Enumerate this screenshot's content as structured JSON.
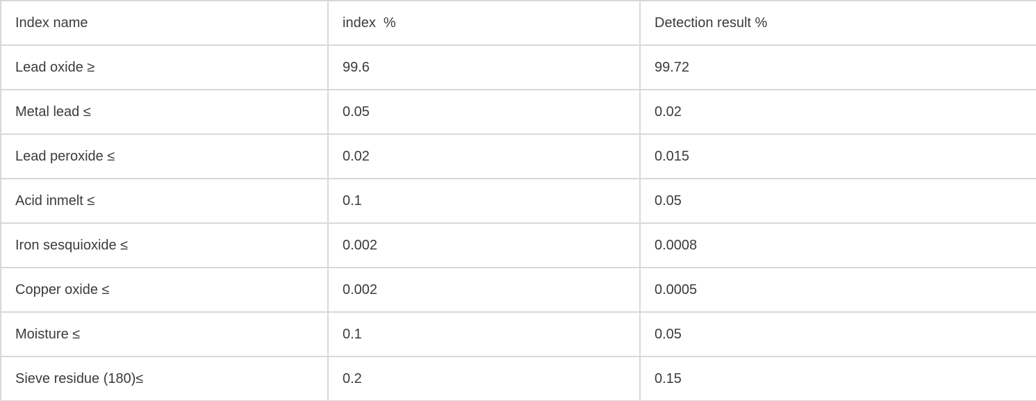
{
  "colors": {
    "border": "#d8d8d8",
    "text": "#3b3b3b",
    "background": "#ffffff"
  },
  "table": {
    "header": {
      "index_name": "Index name",
      "index_pct": "index  %",
      "detection_result_pct": "Detection result %"
    },
    "rows": [
      {
        "index_name": "Lead oxide ≥",
        "index_pct": "99.6",
        "detection_result_pct": "99.72"
      },
      {
        "index_name": "Metal lead ≤",
        "index_pct": "0.05",
        "detection_result_pct": "0.02"
      },
      {
        "index_name": "Lead peroxide ≤",
        "index_pct": "0.02",
        "detection_result_pct": "0.015"
      },
      {
        "index_name": "Acid inmelt ≤",
        "index_pct": "0.1",
        "detection_result_pct": "0.05"
      },
      {
        "index_name": "Iron sesquioxide ≤",
        "index_pct": "0.002",
        "detection_result_pct": "0.0008"
      },
      {
        "index_name": "Copper oxide ≤",
        "index_pct": "0.002",
        "detection_result_pct": "0.0005"
      },
      {
        "index_name": "Moisture ≤",
        "index_pct": "0.1",
        "detection_result_pct": "0.05"
      },
      {
        "index_name": "Sieve residue (180)≤",
        "index_pct": "0.2",
        "detection_result_pct": "0.15"
      }
    ]
  }
}
